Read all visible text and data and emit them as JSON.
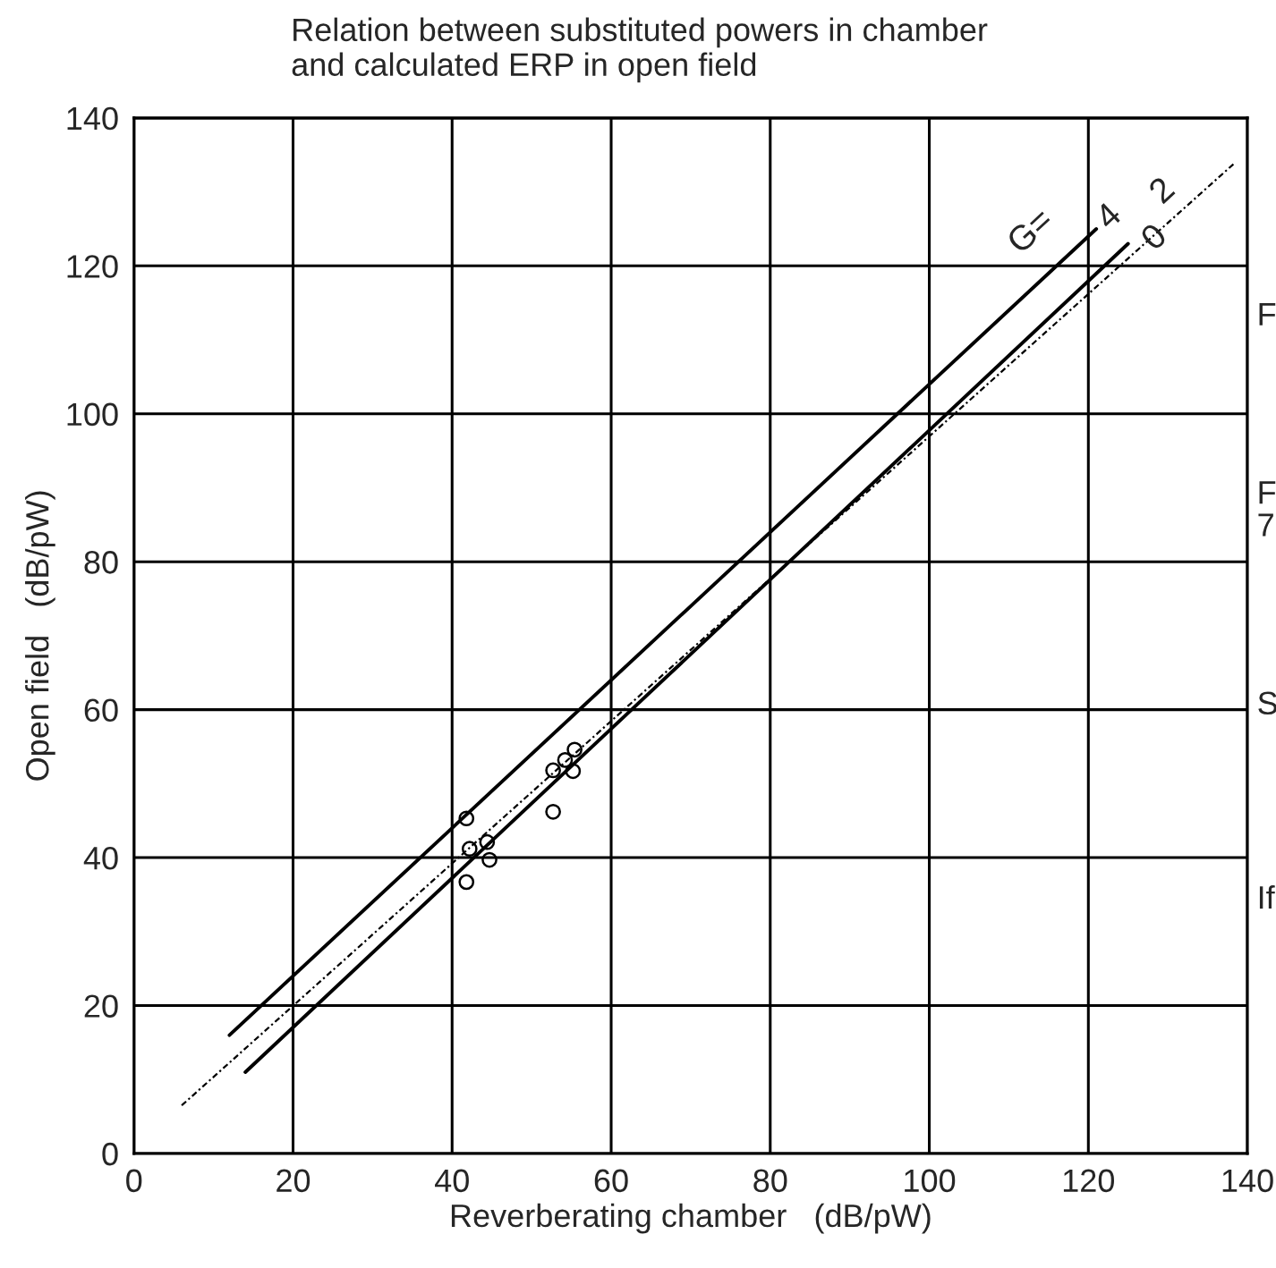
{
  "chart_data": {
    "type": "scatter",
    "title": "Relation between substituted powers in chamber\nand calculated ERP in open field",
    "xlabel": "Reverberating chamber   (dB/pW)",
    "ylabel": "Open field   (dB/pW)",
    "series": [
      {
        "color": "#000000",
        "marker": "circle",
        "x": [
          41.8,
          42.2,
          44.4,
          44.7,
          41.8,
          52.7,
          52.7,
          54.2,
          55.4,
          55.2
        ],
        "values": [
          45.3,
          41.2,
          42.1,
          39.7,
          36.7,
          46.2,
          51.8,
          53.2,
          54.6,
          51.7
        ]
      },
      {
        "type": "line",
        "name": "4",
        "color": "#000000",
        "line_style": "solid",
        "x": [
          12,
          121
        ],
        "values": [
          16,
          125
        ]
      },
      {
        "type": "line",
        "name": "2",
        "color": "#000000",
        "line_style": "dotted",
        "x": [
          6,
          138.5
        ],
        "values": [
          6.5,
          134
        ]
      },
      {
        "type": "line",
        "name": "0",
        "color": "#000000",
        "line_style": "solid",
        "x": [
          14,
          125
        ],
        "values": [
          11,
          123
        ]
      }
    ],
    "annotations": [
      "G=",
      "F",
      "F\n7",
      "S",
      "If"
    ],
    "xlim": [
      0,
      140
    ],
    "ylim": [
      0,
      140
    ],
    "xticks": [
      0,
      20,
      40,
      60,
      80,
      100,
      120,
      140
    ],
    "yticks": [
      0,
      20,
      40,
      60,
      80,
      100,
      120,
      140
    ],
    "grid": true,
    "legend": false
  }
}
